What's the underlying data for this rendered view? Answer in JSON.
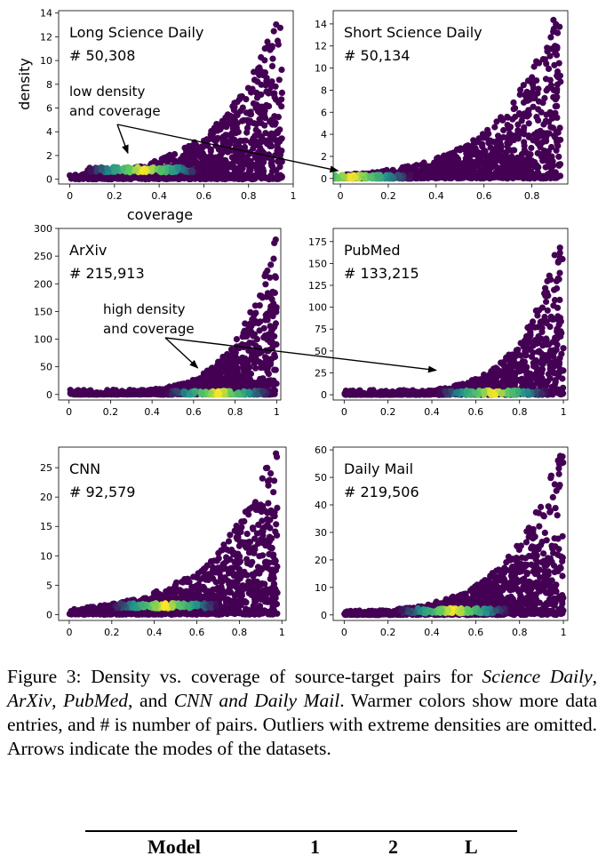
{
  "chart_data": [
    {
      "type": "scatter",
      "label": "Long Science Daily",
      "count": "# 50,308",
      "xlabel": "coverage",
      "ylabel": "density",
      "xlim": [
        -0.05,
        1.0
      ],
      "ylim": [
        -0.4,
        14.2
      ],
      "xticks": [
        0.0,
        0.2,
        0.4,
        0.6,
        0.8,
        1.0
      ],
      "yticks": [
        0,
        2,
        4,
        6,
        8,
        10,
        12,
        14
      ],
      "mode": [
        0.33,
        0.8
      ],
      "trend": {
        "a": 0.35,
        "b": 4.0,
        "xmax": 0.95
      },
      "annotation": {
        "lines": [
          "low density",
          "and coverage"
        ]
      }
    },
    {
      "type": "scatter",
      "label": "Short Science Daily",
      "count": "# 50,134",
      "xlabel": "",
      "ylabel": "",
      "xlim": [
        -0.03,
        0.95
      ],
      "ylim": [
        -0.5,
        15.2
      ],
      "xticks": [
        0.0,
        0.2,
        0.4,
        0.6,
        0.8
      ],
      "yticks": [
        0,
        2,
        4,
        6,
        8,
        10,
        12,
        14
      ],
      "mode": [
        0.05,
        0.1
      ],
      "trend": {
        "a": 0.15,
        "b": 4.2,
        "xmax": 0.92
      }
    },
    {
      "type": "scatter",
      "label": "ArXiv",
      "count": "# 215,913",
      "xlabel": "",
      "ylabel": "",
      "xlim": [
        -0.05,
        1.02
      ],
      "ylim": [
        -10,
        300
      ],
      "xticks": [
        0.0,
        0.2,
        0.4,
        0.6,
        0.8,
        1.0
      ],
      "yticks": [
        0,
        50,
        100,
        150,
        200,
        250,
        300
      ],
      "mode": [
        0.72,
        2.0
      ],
      "trend": {
        "a": 0.3,
        "b": 6.0,
        "xmax": 1.0
      },
      "annotation": {
        "lines": [
          "high density",
          "and coverage"
        ]
      }
    },
    {
      "type": "scatter",
      "label": "PubMed",
      "count": "# 133,215",
      "xlabel": "",
      "ylabel": "",
      "xlim": [
        -0.05,
        1.02
      ],
      "ylim": [
        -6,
        190
      ],
      "xticks": [
        0.0,
        0.2,
        0.4,
        0.6,
        0.8,
        1.0
      ],
      "yticks": [
        0,
        25,
        50,
        75,
        100,
        125,
        150,
        175
      ],
      "mode": [
        0.68,
        2.0
      ],
      "trend": {
        "a": 0.3,
        "b": 6.0,
        "xmax": 1.0
      }
    },
    {
      "type": "scatter",
      "label": "CNN",
      "count": "# 92,579",
      "xlabel": "",
      "ylabel": "",
      "xlim": [
        -0.05,
        1.02
      ],
      "ylim": [
        -1,
        28.5
      ],
      "xticks": [
        0.0,
        0.2,
        0.4,
        0.6,
        0.8,
        1.0
      ],
      "yticks": [
        0,
        5,
        10,
        15,
        20,
        25
      ],
      "mode": [
        0.45,
        1.5
      ],
      "trend": {
        "a": 0.5,
        "b": 3.6,
        "xmax": 0.98
      }
    },
    {
      "type": "scatter",
      "label": "Daily Mail",
      "count": "# 219,506",
      "xlabel": "",
      "ylabel": "",
      "xlim": [
        -0.05,
        1.02
      ],
      "ylim": [
        -2,
        61
      ],
      "xticks": [
        0.0,
        0.2,
        0.4,
        0.6,
        0.8,
        1.0
      ],
      "yticks": [
        0,
        10,
        20,
        30,
        40,
        50,
        60
      ],
      "mode": [
        0.5,
        1.5
      ],
      "trend": {
        "a": 0.4,
        "b": 4.5,
        "xmax": 1.0
      }
    }
  ],
  "colors": {
    "low": "#440154",
    "mid": "#21918c",
    "high": "#5ec962",
    "peak": "#fde725"
  },
  "caption": {
    "figure_label": "Figure 3:",
    "text_1": " Density vs. coverage of source-target pairs for ",
    "em_1": "Science Daily",
    "text_2": ", ",
    "em_2": "ArXiv",
    "text_3": ", ",
    "em_3": "PubMed",
    "text_4": ", and ",
    "em_4": "CNN and Daily Mail",
    "text_5": ". Warmer colors show more data entries, and # is number of pairs. Outliers with extreme densities are omitted. Arrows indicate the modes of the datasets."
  },
  "table_header": [
    "Model",
    "1",
    "2",
    "L"
  ]
}
